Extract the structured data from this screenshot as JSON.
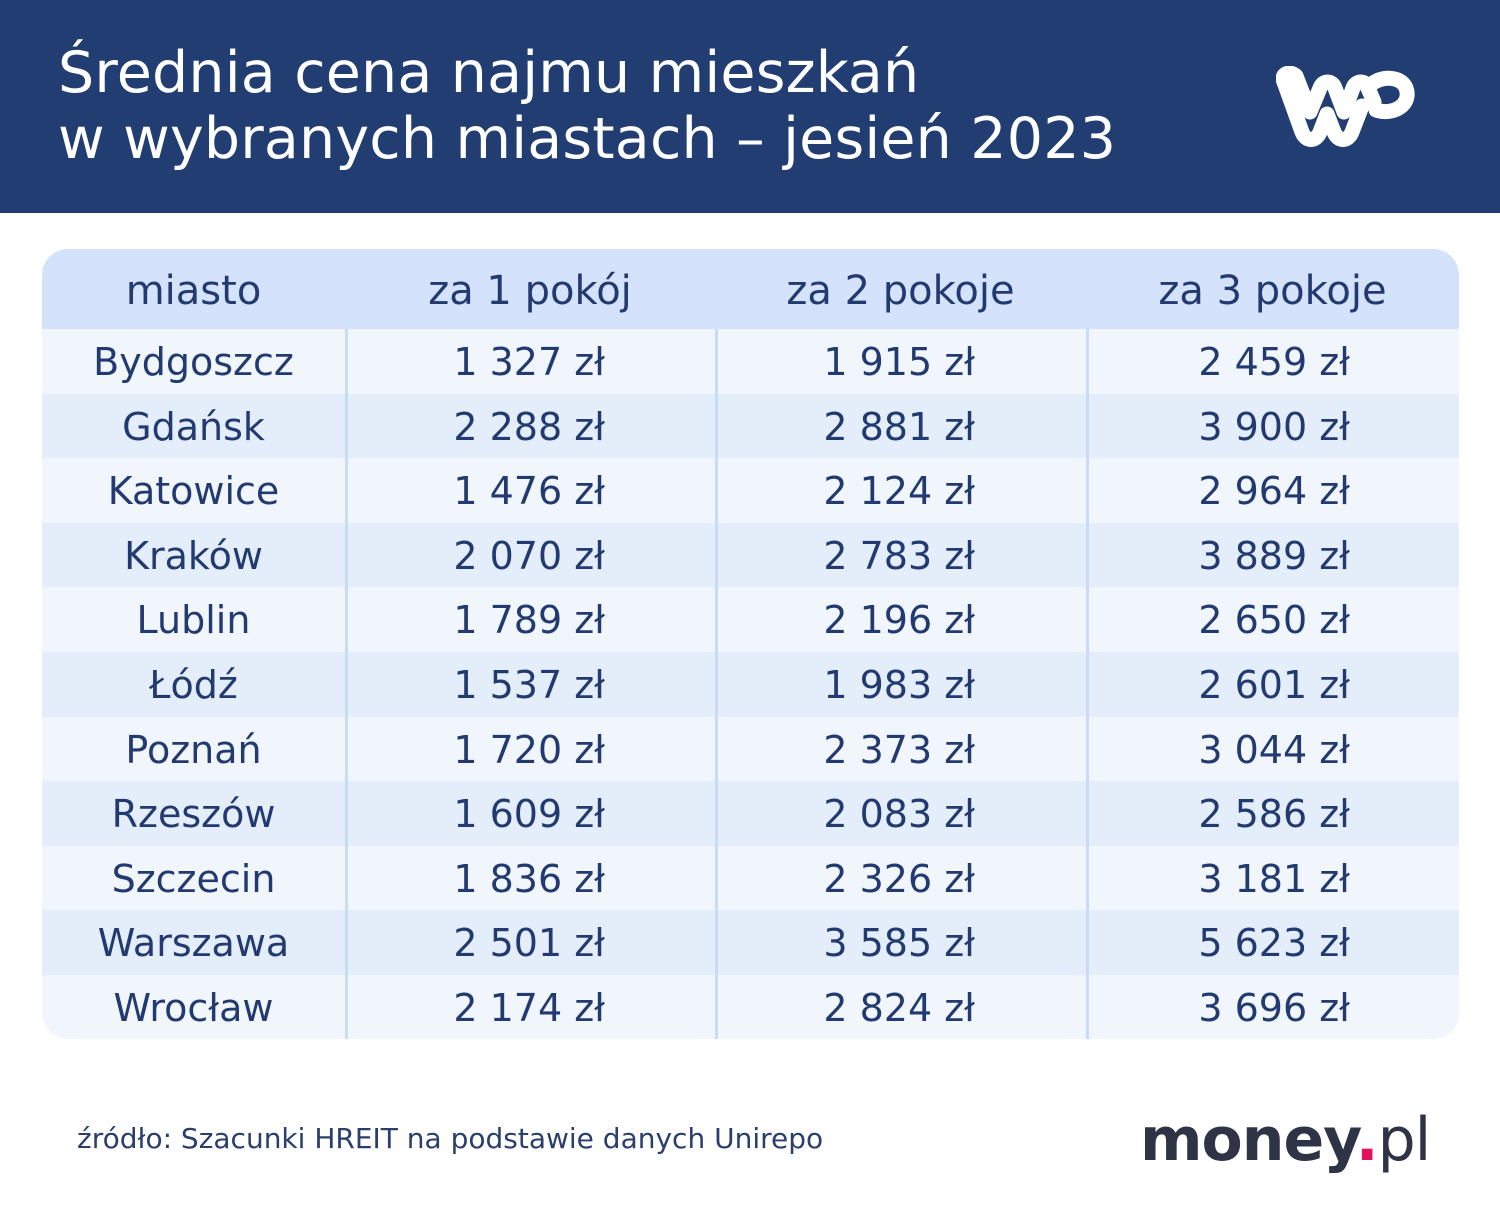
{
  "header": {
    "title_line1": "Średnia cena najmu mieszkań",
    "title_line2": "w wybranych miastach – jesień 2023",
    "logo": "wp-logo"
  },
  "footer": {
    "source": "źródło: Szacunki HREIT na podstawie danych Unirepo",
    "brand_main": "money",
    "brand_dot": ".",
    "brand_tld": "pl"
  },
  "colors": {
    "header_bg": "#223d72",
    "table_header_bg": "#d4e3fb",
    "row_light": "#f1f6fd",
    "row_dark": "#e4eefb",
    "text": "#223a70",
    "brand_dot": "#e2125a"
  },
  "chart_data": {
    "type": "table",
    "title": "Średnia cena najmu mieszkań w wybranych miastach – jesień 2023",
    "columns": [
      "miasto",
      "za 1 pokój",
      "za 2 pokoje",
      "za 3 pokoje"
    ],
    "unit": "zł",
    "rows": [
      {
        "city": "Bydgoszcz",
        "v1": "1 327 zł",
        "v2": "1 915 zł",
        "v3": "2 459 zł"
      },
      {
        "city": "Gdańsk",
        "v1": "2 288 zł",
        "v2": "2 881 zł",
        "v3": "3 900 zł"
      },
      {
        "city": "Katowice",
        "v1": "1 476 zł",
        "v2": "2 124 zł",
        "v3": "2 964 zł"
      },
      {
        "city": "Kraków",
        "v1": "2 070 zł",
        "v2": "2 783 zł",
        "v3": "3 889 zł"
      },
      {
        "city": "Lublin",
        "v1": "1 789 zł",
        "v2": "2 196 zł",
        "v3": "2 650 zł"
      },
      {
        "city": "Łódź",
        "v1": "1 537 zł",
        "v2": "1 983 zł",
        "v3": "2 601 zł"
      },
      {
        "city": "Poznań",
        "v1": "1 720 zł",
        "v2": "2 373 zł",
        "v3": "3 044 zł"
      },
      {
        "city": "Rzeszów",
        "v1": "1 609 zł",
        "v2": "2 083 zł",
        "v3": "2 586 zł"
      },
      {
        "city": "Szczecin",
        "v1": "1 836 zł",
        "v2": "2 326 zł",
        "v3": "3 181 zł"
      },
      {
        "city": "Warszawa",
        "v1": "2 501 zł",
        "v2": "3 585 zł",
        "v3": "5 623 zł"
      },
      {
        "city": "Wrocław",
        "v1": "2 174 zł",
        "v2": "2 824 zł",
        "v3": "3 696 zł"
      }
    ]
  }
}
